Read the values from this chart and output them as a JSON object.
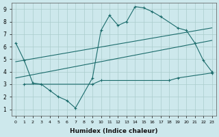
{
  "background_color": "#cde8ec",
  "grid_color": "#aacccc",
  "line_color": "#1a6b6b",
  "xlabel": "Humidex (Indice chaleur)",
  "xlim": [
    -0.5,
    23.5
  ],
  "ylim": [
    0.5,
    9.5
  ],
  "yticks": [
    1,
    2,
    3,
    4,
    5,
    6,
    7,
    8,
    9
  ],
  "xticks": [
    0,
    1,
    2,
    3,
    4,
    5,
    6,
    7,
    8,
    9,
    10,
    11,
    12,
    13,
    14,
    15,
    16,
    17,
    18,
    19,
    20,
    21,
    22,
    23
  ],
  "series": [
    {
      "x": [
        0,
        1,
        2,
        3,
        4,
        5,
        6,
        7,
        9,
        10,
        11,
        12,
        13,
        14,
        15,
        16,
        17,
        19,
        20,
        21,
        22,
        23
      ],
      "y": [
        6.3,
        4.9,
        3.1,
        3.0,
        2.5,
        2.0,
        1.7,
        1.1,
        3.5,
        7.3,
        8.5,
        7.7,
        8.0,
        9.2,
        9.1,
        8.8,
        8.4,
        7.5,
        7.3,
        6.3,
        4.9,
        4.0
      ]
    },
    {
      "x": [
        0,
        23
      ],
      "y": [
        4.8,
        7.5
      ]
    },
    {
      "x": [
        0,
        23
      ],
      "y": [
        3.5,
        6.5
      ]
    },
    {
      "x": [
        1,
        9,
        10,
        18,
        19,
        23
      ],
      "y": [
        3.0,
        3.0,
        3.3,
        3.3,
        3.5,
        3.9
      ]
    }
  ]
}
